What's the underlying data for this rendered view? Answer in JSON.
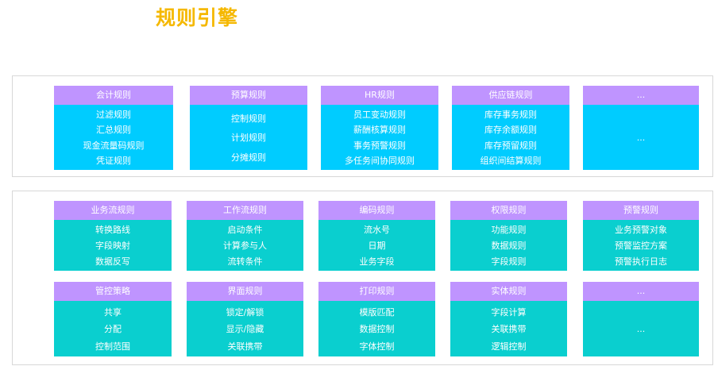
{
  "title": "规则引擎",
  "colors": {
    "title": "#f5b800",
    "header": "#bf94ff",
    "body_blue": "#00ccff",
    "body_teal": "#0acfcf"
  },
  "panel1": {
    "cards": [
      {
        "header": "会计规则",
        "items": [
          "过滤规则",
          "汇总规则",
          "现金流量码规则",
          "凭证规则"
        ]
      },
      {
        "header": "预算规则",
        "items": [
          "控制规则",
          "计划规则",
          "分摊规则"
        ]
      },
      {
        "header": "HR规则",
        "items": [
          "员工变动规则",
          "薪酬核算规则",
          "事务预警规则",
          "多任务间协同规则"
        ]
      },
      {
        "header": "供应链规则",
        "items": [
          "库存事务规则",
          "库存余额规则",
          "库存预留规则",
          "组织间结算规则"
        ]
      },
      {
        "header": "...",
        "items": [
          "..."
        ]
      }
    ]
  },
  "panel2": {
    "rows": [
      [
        {
          "header": "业务流规则",
          "items": [
            "转换路线",
            "字段映射",
            "数据反写"
          ]
        },
        {
          "header": "工作流规则",
          "items": [
            "启动条件",
            "计算参与人",
            "流转条件"
          ]
        },
        {
          "header": "编码规则",
          "items": [
            "流水号",
            "日期",
            "业务字段"
          ]
        },
        {
          "header": "权限规则",
          "items": [
            "功能规则",
            "数据规则",
            "字段规则"
          ]
        },
        {
          "header": "预警规则",
          "items": [
            "业务预警对象",
            "预警监控方案",
            "预警执行日志"
          ]
        }
      ],
      [
        {
          "header": "管控策略",
          "items": [
            "共享",
            "分配",
            "控制范围"
          ]
        },
        {
          "header": "界面规则",
          "items": [
            "锁定/解锁",
            "显示/隐藏",
            "关联携带"
          ]
        },
        {
          "header": "打印规则",
          "items": [
            "模版匹配",
            "数据控制",
            "字体控制"
          ]
        },
        {
          "header": "实体规则",
          "items": [
            "字段计算",
            "关联携带",
            "逻辑控制"
          ]
        },
        {
          "header": "...",
          "items": [
            "..."
          ]
        }
      ]
    ]
  }
}
